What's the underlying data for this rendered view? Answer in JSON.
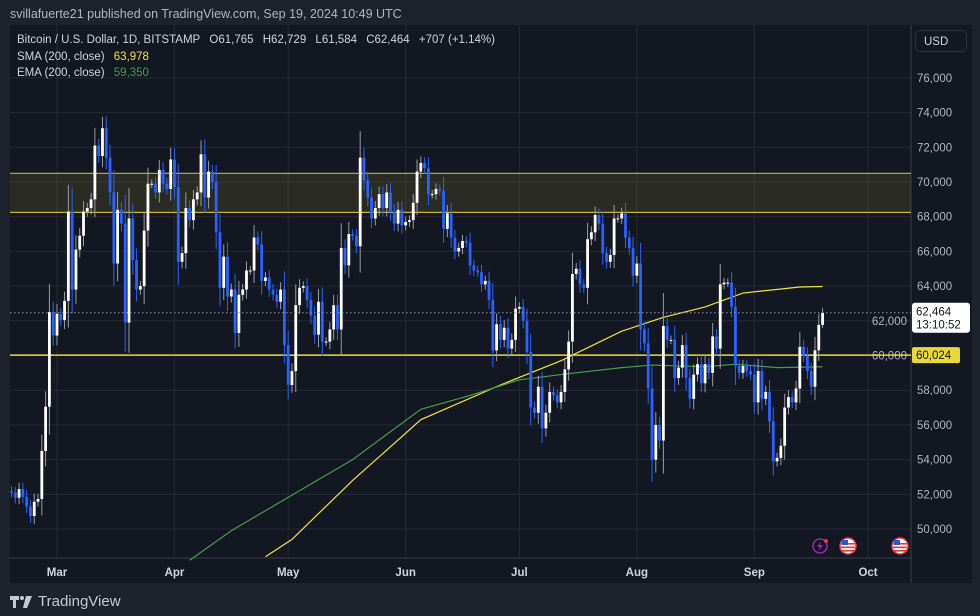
{
  "header": {
    "published": "svillafuerte21 published on TradingView.com, Sep 19, 2024 10:49 UTC"
  },
  "legend": {
    "symbol": "Bitcoin / U.S. Dollar, 1D, BITSTAMP",
    "open": "O61,765",
    "high": "H62,729",
    "low": "L61,584",
    "close": "C62,464",
    "change": "+707 (+1.14%)",
    "sma_label": "SMA (200, close)",
    "sma_value": "63,978",
    "ema_label": "EMA (200, close)",
    "ema_value": "59,350"
  },
  "currency_button": "USD",
  "price_label": {
    "price": "62,464",
    "countdown": "13:10:52"
  },
  "support_label": "60,024",
  "footer": {
    "brand": "TradingView"
  },
  "colors": {
    "up": "#ffffff",
    "down": "#2962ff",
    "sma": "#f2e33b",
    "ema": "#43a047",
    "zone": "#c8b32a",
    "support": "#e8d838"
  },
  "icons": [
    "tv-logo-icon",
    "lightning-event-icon",
    "us-flag-event-icon",
    "us-flag-event-icon"
  ],
  "chart_data": {
    "type": "candlestick",
    "start_date": "2024-02-18",
    "ylim": [
      48500,
      77500
    ],
    "y_ticks": [
      "50,000",
      "52,000",
      "54,000",
      "56,000",
      "58,000",
      "60,000",
      "62,000",
      "64,000",
      "66,000",
      "68,000",
      "70,000",
      "72,000",
      "74,000",
      "76,000"
    ],
    "y_tick_values": [
      50000,
      52000,
      54000,
      56000,
      58000,
      60000,
      62000,
      64000,
      66000,
      68000,
      70000,
      72000,
      74000,
      76000
    ],
    "x_ticks": [
      {
        "label": "Mar",
        "date": "2024-03-01"
      },
      {
        "label": "Apr",
        "date": "2024-04-01"
      },
      {
        "label": "May",
        "date": "2024-05-01"
      },
      {
        "label": "Jun",
        "date": "2024-06-01"
      },
      {
        "label": "Jul",
        "date": "2024-07-01"
      },
      {
        "label": "Aug",
        "date": "2024-08-01"
      },
      {
        "label": "Sep",
        "date": "2024-09-01"
      },
      {
        "label": "Oct",
        "date": "2024-10-01"
      }
    ],
    "closes": [
      52100,
      51800,
      52300,
      51850,
      51300,
      50750,
      51570,
      51730,
      54500,
      57050,
      62500,
      61150,
      62400,
      62050,
      63150,
      68300,
      63800,
      66100,
      66900,
      68300,
      68500,
      69000,
      72100,
      71500,
      73100,
      71400,
      69400,
      65300,
      68400,
      67600,
      61900,
      67900,
      65500,
      63800,
      64000,
      67200,
      69900,
      69900,
      69400,
      70700,
      69900,
      69600,
      71300,
      69700,
      65400,
      65900,
      68500,
      67800,
      69000,
      69400,
      71600,
      69100,
      70600,
      70000,
      67100,
      63900,
      65700,
      63400,
      63800,
      61300,
      63500,
      63800,
      64900,
      64900,
      66800,
      66400,
      64300,
      64500,
      63800,
      63500,
      63100,
      63800,
      60600,
      58300,
      59100,
      62900,
      63900,
      64000,
      63200,
      62300,
      61200,
      63100,
      60800,
      60800,
      61500,
      62900,
      61500,
      66200,
      65200,
      67000,
      66900,
      66300,
      71400,
      70100,
      69100,
      67900,
      68500,
      69300,
      68500,
      69400,
      68300,
      67600,
      68400,
      67500,
      67700,
      67800,
      68800,
      70600,
      71100,
      70800,
      69300,
      69300,
      69600,
      69500,
      67300,
      68200,
      66800,
      66000,
      66200,
      66600,
      66500,
      65200,
      64900,
      64800,
      64100,
      64300,
      63200,
      60300,
      61800,
      60900,
      61600,
      60400,
      60900,
      62700,
      62800,
      62000,
      60200,
      57000,
      56700,
      58200,
      55800,
      56700,
      57900,
      57700,
      57300,
      57900,
      59200,
      60800,
      64700,
      65000,
      64100,
      63900,
      66700,
      67100,
      68100,
      67600,
      65900,
      65400,
      65800,
      67900,
      67900,
      68200,
      66800,
      66200,
      64600,
      65300,
      61500,
      60700,
      58100,
      54000,
      56000,
      55100,
      61700,
      60900,
      60900,
      58700,
      59300,
      60600,
      58700,
      57500,
      58900,
      59500,
      58400,
      59500,
      59000,
      61100,
      60400,
      64100,
      64200,
      64200,
      62800,
      59400,
      59000,
      59400,
      59100,
      58900,
      57300,
      59100,
      57500,
      57900,
      56200,
      53900,
      54100,
      54800,
      57000,
      57600,
      57300,
      58100,
      60500,
      60000,
      59100,
      58200,
      60300,
      61765,
      62464
    ],
    "first_open": 52200,
    "last_candle": {
      "open": 61765,
      "high": 62729,
      "low": 61584,
      "close": 62464
    },
    "current_price": 62464,
    "resistance_zone": [
      68250,
      70500
    ],
    "support_level": 60024,
    "series": [
      {
        "name": "SMA (200, close)",
        "points": [
          [
            "2024-04-25",
            48400
          ],
          [
            "2024-05-02",
            49400
          ],
          [
            "2024-05-18",
            52800
          ],
          [
            "2024-06-05",
            56300
          ],
          [
            "2024-06-26",
            58300
          ],
          [
            "2024-07-12",
            59700
          ],
          [
            "2024-07-28",
            61400
          ],
          [
            "2024-08-08",
            62200
          ],
          [
            "2024-08-19",
            62800
          ],
          [
            "2024-08-29",
            63600
          ],
          [
            "2024-09-13",
            63950
          ],
          [
            "2024-09-19",
            63978
          ]
        ]
      },
      {
        "name": "EMA (200, close)",
        "points": [
          [
            "2024-04-05",
            48200
          ],
          [
            "2024-04-16",
            49900
          ],
          [
            "2024-05-02",
            51950
          ],
          [
            "2024-05-18",
            54000
          ],
          [
            "2024-06-05",
            56900
          ],
          [
            "2024-06-18",
            57700
          ],
          [
            "2024-07-01",
            58600
          ],
          [
            "2024-07-12",
            58900
          ],
          [
            "2024-07-28",
            59300
          ],
          [
            "2024-08-05",
            59450
          ],
          [
            "2024-08-19",
            59350
          ],
          [
            "2024-08-27",
            59500
          ],
          [
            "2024-09-07",
            59300
          ],
          [
            "2024-09-19",
            59350
          ]
        ]
      }
    ]
  }
}
